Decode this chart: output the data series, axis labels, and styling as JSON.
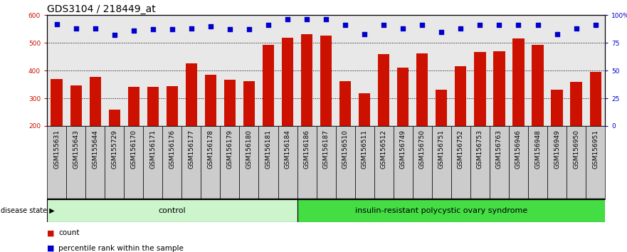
{
  "title": "GDS3104 / 218449_at",
  "samples": [
    "GSM155631",
    "GSM155643",
    "GSM155644",
    "GSM155729",
    "GSM156170",
    "GSM156171",
    "GSM156176",
    "GSM156177",
    "GSM156178",
    "GSM156179",
    "GSM156180",
    "GSM156181",
    "GSM156184",
    "GSM156186",
    "GSM156187",
    "GSM156510",
    "GSM156511",
    "GSM156512",
    "GSM156749",
    "GSM156750",
    "GSM156751",
    "GSM156752",
    "GSM156753",
    "GSM156763",
    "GSM156946",
    "GSM156948",
    "GSM156949",
    "GSM156950",
    "GSM156951"
  ],
  "counts": [
    370,
    347,
    378,
    259,
    340,
    340,
    345,
    425,
    385,
    368,
    362,
    493,
    519,
    530,
    525,
    363,
    318,
    460,
    410,
    462,
    330,
    415,
    467,
    470,
    517,
    492,
    330,
    360,
    395
  ],
  "percentile_ranks": [
    92,
    88,
    88,
    82,
    86,
    87,
    87,
    88,
    90,
    87,
    87,
    91,
    96,
    96,
    96,
    91,
    83,
    91,
    88,
    91,
    85,
    88,
    91,
    91,
    91,
    91,
    83,
    88,
    91
  ],
  "control_count": 13,
  "disease_count": 16,
  "control_label": "control",
  "disease_label": "insulin-resistant polycystic ovary syndrome",
  "bar_color": "#cc1100",
  "dot_color": "#0000cc",
  "ylim_left": [
    200,
    600
  ],
  "yticks_left": [
    200,
    300,
    400,
    500,
    600
  ],
  "ylim_right": [
    0,
    100
  ],
  "yticks_right": [
    0,
    25,
    50,
    75,
    100
  ],
  "plot_bg": "#e8e8e8",
  "label_bg": "#cccccc",
  "control_bg": "#ccf5cc",
  "disease_bg": "#44dd44",
  "title_fontsize": 10,
  "tick_fontsize": 6.5,
  "label_fontsize": 8
}
